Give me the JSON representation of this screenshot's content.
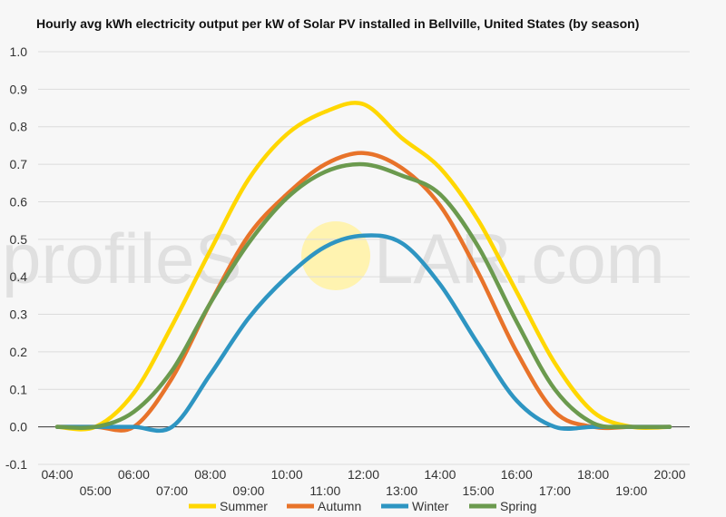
{
  "chart_data": {
    "type": "line",
    "title": "Hourly avg kWh electricity output per kW of Solar PV installed in Bellville, United States (by season)",
    "xlabel": "",
    "ylabel": "",
    "ylim": [
      -0.1,
      1.0
    ],
    "yticks": [
      "-0.1",
      "0.0",
      "0.1",
      "0.2",
      "0.3",
      "0.4",
      "0.5",
      "0.6",
      "0.7",
      "0.8",
      "0.9",
      "1.0"
    ],
    "x": [
      "04:00",
      "05:00",
      "06:00",
      "07:00",
      "08:00",
      "09:00",
      "10:00",
      "11:00",
      "12:00",
      "13:00",
      "14:00",
      "15:00",
      "16:00",
      "17:00",
      "18:00",
      "19:00",
      "20:00"
    ],
    "legend_position": "bottom",
    "grid": true,
    "series": [
      {
        "name": "Summer",
        "color": "#FFD700",
        "values": [
          0,
          0,
          0.09,
          0.27,
          0.47,
          0.66,
          0.78,
          0.84,
          0.86,
          0.77,
          0.69,
          0.55,
          0.36,
          0.17,
          0.04,
          0,
          0
        ]
      },
      {
        "name": "Autumn",
        "color": "#E8732A",
        "values": [
          0,
          0,
          0,
          0.13,
          0.33,
          0.51,
          0.62,
          0.7,
          0.73,
          0.69,
          0.59,
          0.41,
          0.2,
          0.04,
          0,
          0,
          0
        ]
      },
      {
        "name": "Winter",
        "color": "#2E95C2",
        "values": [
          0,
          0,
          0,
          0,
          0.14,
          0.29,
          0.4,
          0.48,
          0.51,
          0.49,
          0.38,
          0.22,
          0.07,
          0,
          0,
          0,
          0
        ]
      },
      {
        "name": "Spring",
        "color": "#6B9A4E",
        "values": [
          0,
          0,
          0.04,
          0.15,
          0.33,
          0.49,
          0.61,
          0.68,
          0.7,
          0.67,
          0.62,
          0.48,
          0.28,
          0.1,
          0.01,
          0,
          0
        ]
      }
    ]
  },
  "watermark": {
    "text_left": "profileS",
    "text_right": "LAR.com",
    "sun_color": "#FFF3B0"
  }
}
